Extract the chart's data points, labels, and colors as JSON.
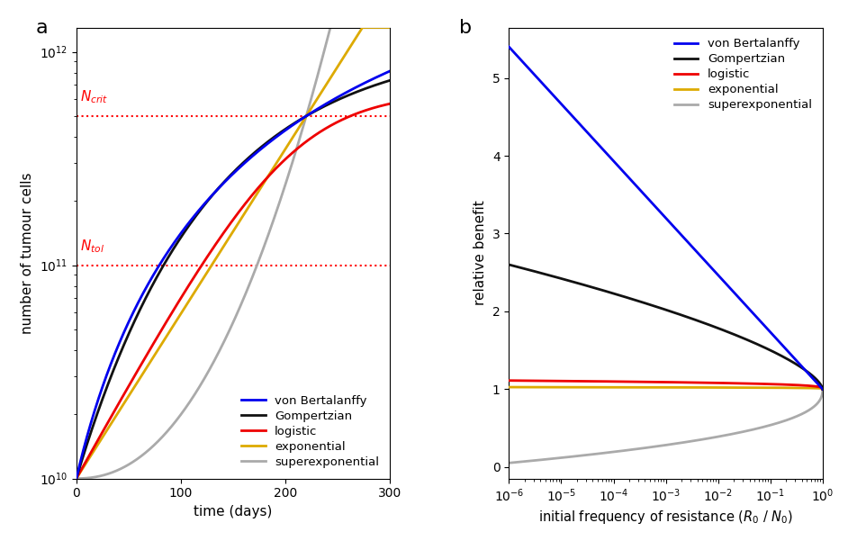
{
  "panel_a": {
    "title_label": "a",
    "xlabel": "time (days)",
    "ylabel": "number of tumour cells",
    "xlim": [
      0,
      300
    ],
    "N0": 10000000000.0,
    "N_crit": 500000000000.0,
    "N_tol": 100000000000.0,
    "colors": {
      "vonBertalanffy": "#0000EE",
      "Gompertzian": "#111111",
      "logistic": "#EE0000",
      "exponential": "#DDAA00",
      "superexponential": "#AAAAAA"
    }
  },
  "panel_b": {
    "title_label": "b",
    "xlabel": "initial frequency of resistance ($R_0$ / $N_0$)",
    "ylabel": "relative benefit",
    "ylim": [
      -0.15,
      5.65
    ],
    "colors": {
      "vonBertalanffy": "#0000EE",
      "Gompertzian": "#111111",
      "logistic": "#EE0000",
      "exponential": "#DDAA00",
      "superexponential": "#AAAAAA"
    }
  },
  "figure": {
    "bg_color": "#FFFFFF",
    "linewidth": 2.0
  }
}
